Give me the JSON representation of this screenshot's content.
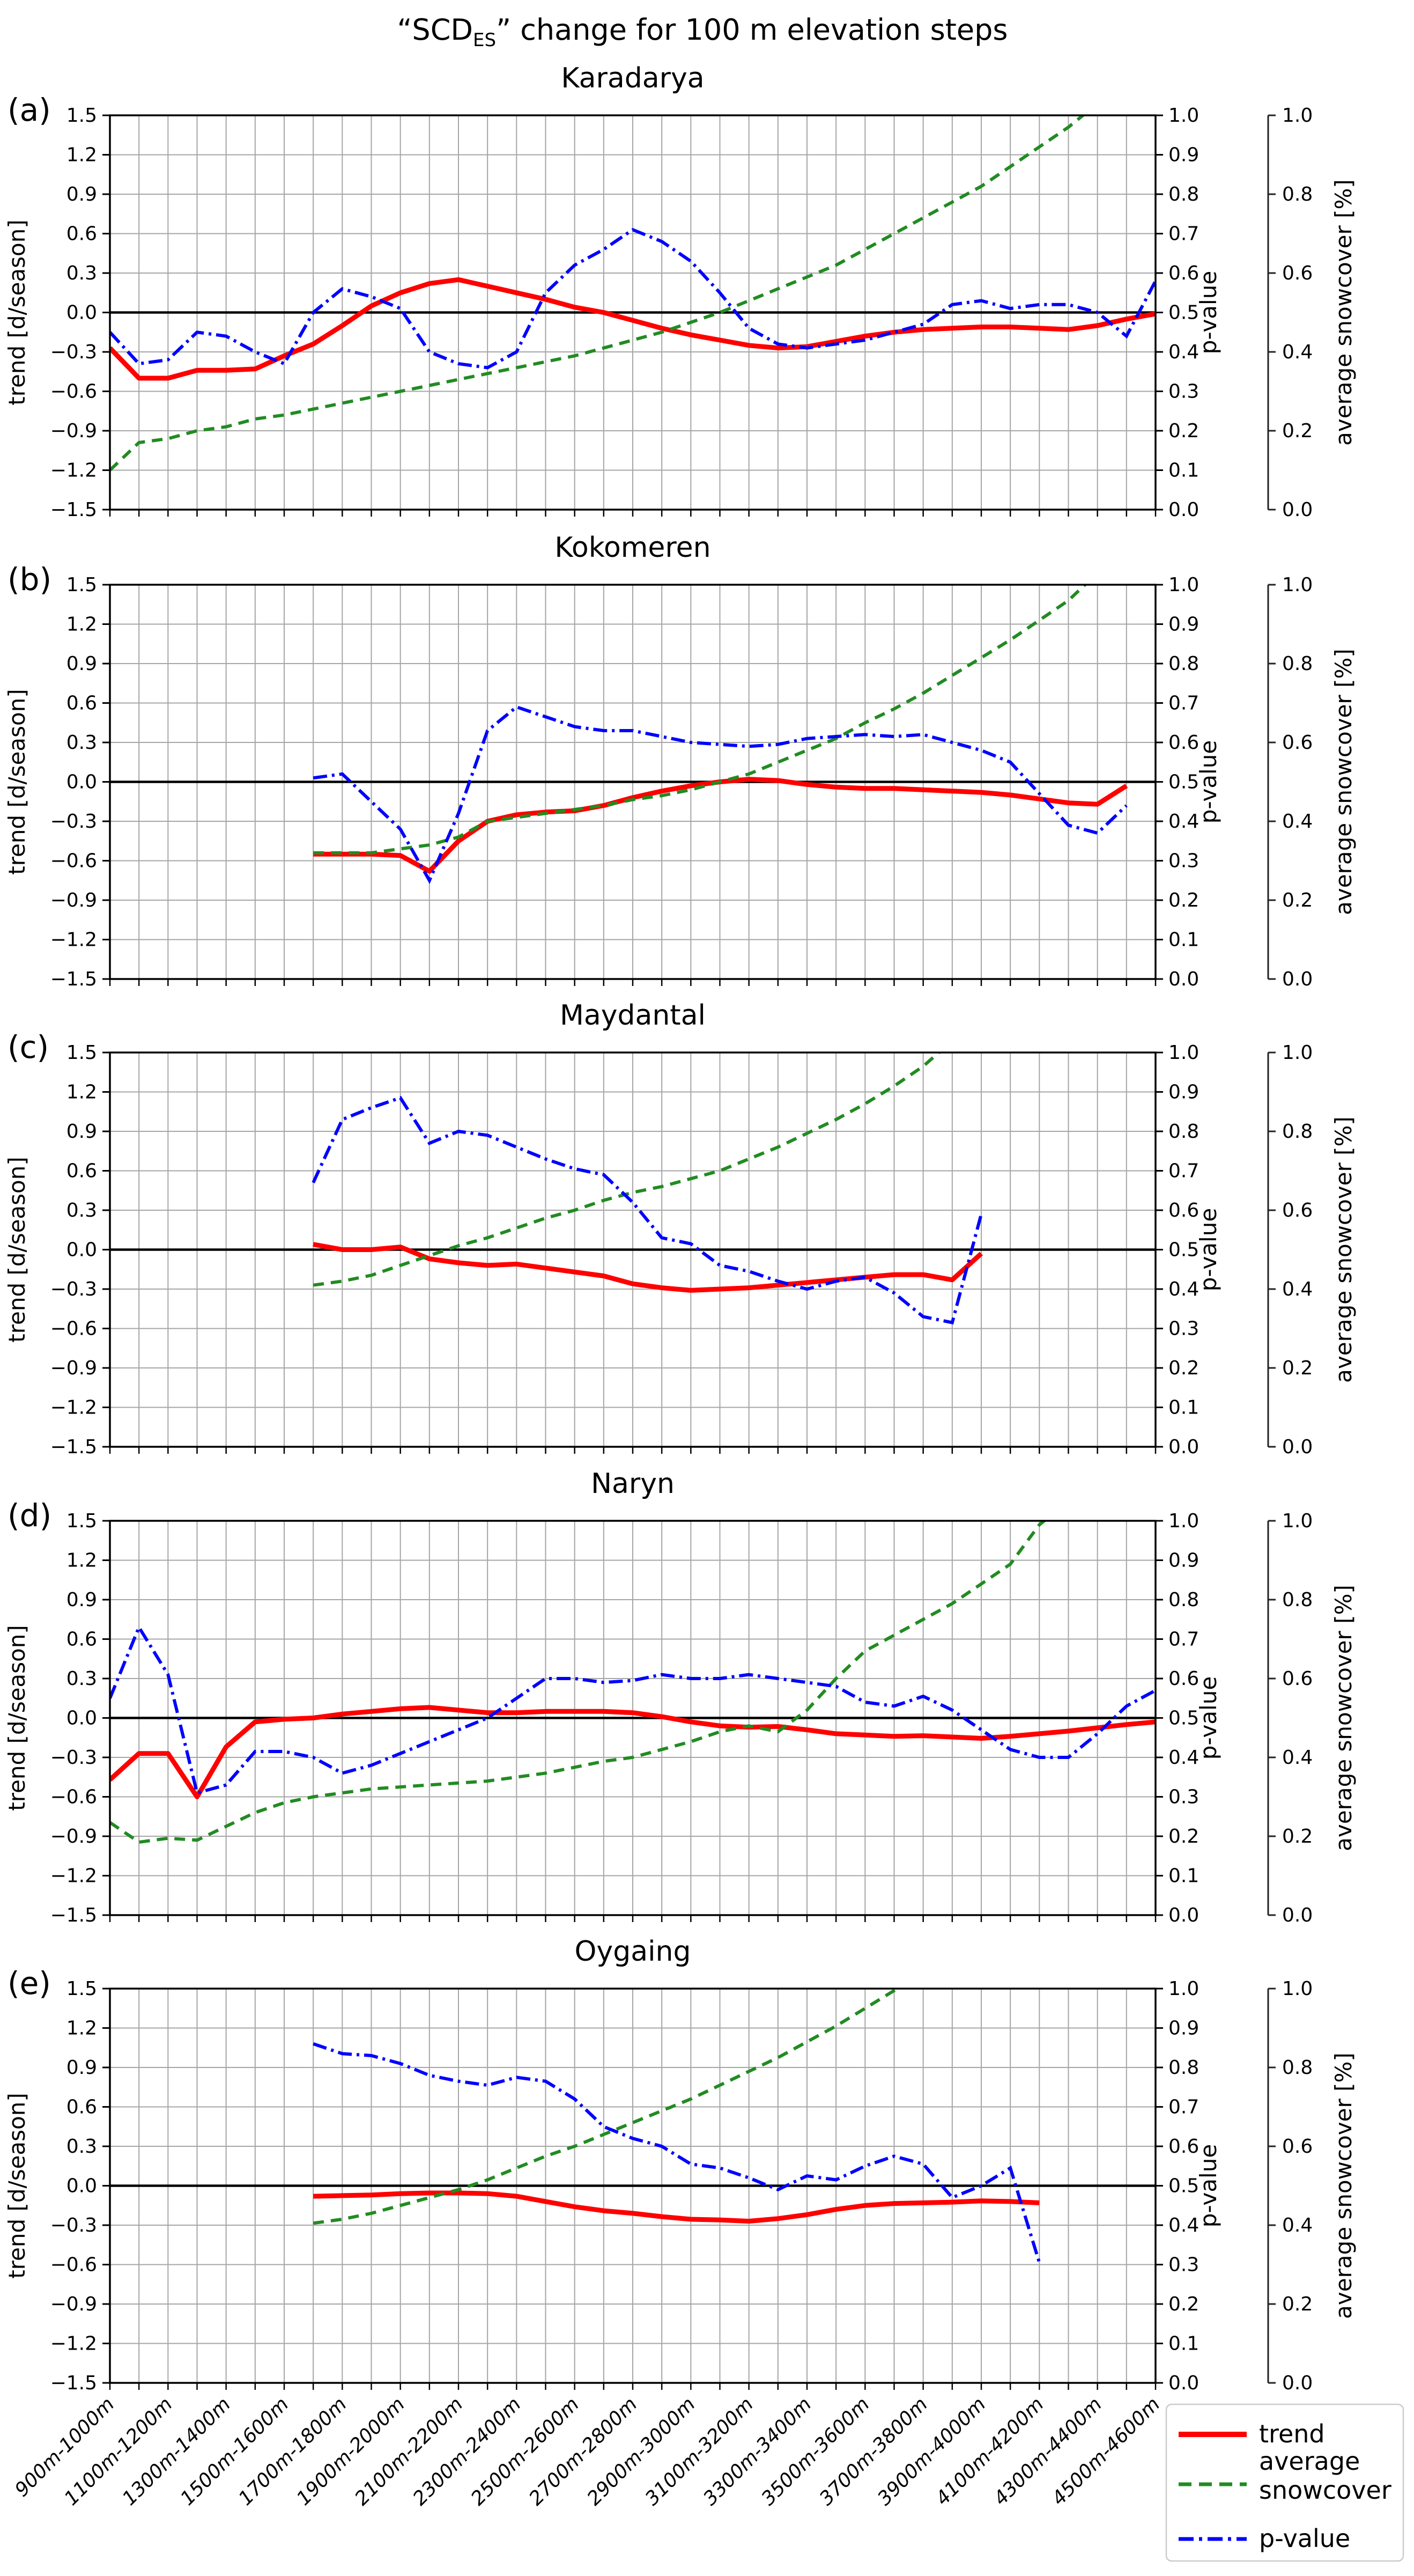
{
  "figure": {
    "title": {
      "prefix": "“SCD",
      "subscript": "ES",
      "suffix": "” change for  100 m elevation steps"
    },
    "axes": {
      "trend_label": "trend [d/season]",
      "pvalue_label": "p-value",
      "snowcover_label": "average snowcover [%]",
      "trend_ticks": [
        "1.5",
        "1.2",
        "0.9",
        "0.6",
        "0.3",
        "0.0",
        "−0.3",
        "−0.6",
        "−0.9",
        "−1.2",
        "−1.5"
      ],
      "pvalue_ticks": [
        "1.0",
        "0.9",
        "0.8",
        "0.7",
        "0.6",
        "0.5",
        "0.4",
        "0.3",
        "0.2",
        "0.1",
        "0.0"
      ],
      "snowcover_ticks": [
        "1.0",
        "0.8",
        "0.6",
        "0.4",
        "0.2",
        "0.0"
      ]
    },
    "colors": {
      "trend": "#ff0000",
      "snowcover": "#228b22",
      "pvalue": "#0000ff",
      "grid": "#a6a6a6"
    },
    "legend": {
      "items": [
        {
          "lines": [
            "trend"
          ],
          "style": "solid",
          "color": "#ff0000"
        },
        {
          "lines": [
            "average",
            "snowcover"
          ],
          "style": "dashed",
          "color": "#228b22"
        },
        {
          "lines": [
            "p-value"
          ],
          "style": "dashdot",
          "color": "#0000ff"
        }
      ]
    },
    "x_tick_labels": [
      "900m-1000m",
      "1100m-1200m",
      "1300m-1400m",
      "1500m-1600m",
      "1700m-1800m",
      "1900m-2000m",
      "2100m-2200m",
      "2300m-2400m",
      "2500m-2600m",
      "2700m-2800m",
      "2900m-3000m",
      "3100m-3200m",
      "3300m-3400m",
      "3500m-3600m",
      "3700m-3800m",
      "3900m-4000m",
      "4100m-4200m",
      "4300m-4400m",
      "4500m-4600m"
    ]
  },
  "chart_data": [
    {
      "type": "line",
      "panel_label": "(a)",
      "title": "Karadarya",
      "xlabel": "",
      "ylabel_left": "trend [d/season]",
      "ylabel_right1": "p-value",
      "ylabel_right2": "average snowcover [%]",
      "ylim_left": [
        -1.5,
        1.5
      ],
      "ylim_right": [
        0.0,
        1.0
      ],
      "n_bins": 37,
      "grid": true,
      "series": [
        {
          "name": "trend",
          "axis": "trend",
          "start": 0,
          "values": [
            -0.27,
            -0.5,
            -0.5,
            -0.44,
            -0.44,
            -0.43,
            -0.33,
            -0.24,
            -0.1,
            0.05,
            0.15,
            0.22,
            0.25,
            0.2,
            0.15,
            0.1,
            0.04,
            0.0,
            -0.06,
            -0.12,
            -0.17,
            -0.21,
            -0.25,
            -0.27,
            -0.26,
            -0.22,
            -0.18,
            -0.15,
            -0.13,
            -0.12,
            -0.11,
            -0.11,
            -0.12,
            -0.13,
            -0.1,
            -0.05,
            -0.01
          ]
        },
        {
          "name": "average snowcover",
          "axis": "pct",
          "start": 0,
          "values": [
            0.1,
            0.17,
            0.18,
            0.2,
            0.21,
            0.23,
            0.24,
            0.255,
            0.27,
            0.285,
            0.3,
            0.315,
            0.33,
            0.345,
            0.36,
            0.375,
            0.39,
            0.41,
            0.43,
            0.45,
            0.475,
            0.5,
            0.53,
            0.56,
            0.59,
            0.62,
            0.66,
            0.7,
            0.74,
            0.78,
            0.82,
            0.87,
            0.92,
            0.97,
            1.03
          ]
        },
        {
          "name": "p-value",
          "axis": "pct",
          "start": 0,
          "values": [
            0.45,
            0.37,
            0.38,
            0.45,
            0.44,
            0.4,
            0.37,
            0.5,
            0.56,
            0.54,
            0.51,
            0.4,
            0.37,
            0.36,
            0.4,
            0.55,
            0.62,
            0.66,
            0.71,
            0.68,
            0.63,
            0.55,
            0.46,
            0.42,
            0.41,
            0.42,
            0.43,
            0.45,
            0.47,
            0.52,
            0.53,
            0.51,
            0.52,
            0.52,
            0.5,
            0.44,
            0.58
          ]
        }
      ]
    },
    {
      "type": "line",
      "panel_label": "(b)",
      "title": "Kokomeren",
      "ylim_left": [
        -1.5,
        1.5
      ],
      "ylim_right": [
        0.0,
        1.0
      ],
      "n_bins": 37,
      "grid": true,
      "series": [
        {
          "name": "trend",
          "axis": "trend",
          "start": 7,
          "values": [
            -0.55,
            -0.55,
            -0.55,
            -0.56,
            -0.68,
            -0.45,
            -0.3,
            -0.25,
            -0.23,
            -0.22,
            -0.18,
            -0.12,
            -0.07,
            -0.03,
            0.0,
            0.02,
            0.01,
            -0.02,
            -0.04,
            -0.05,
            -0.05,
            -0.06,
            -0.07,
            -0.08,
            -0.1,
            -0.13,
            -0.16,
            -0.17,
            -0.03
          ]
        },
        {
          "name": "average snowcover",
          "axis": "pct",
          "start": 7,
          "values": [
            0.32,
            0.32,
            0.32,
            0.33,
            0.34,
            0.36,
            0.4,
            0.41,
            0.42,
            0.43,
            0.44,
            0.455,
            0.465,
            0.48,
            0.5,
            0.52,
            0.55,
            0.58,
            0.61,
            0.65,
            0.685,
            0.725,
            0.77,
            0.815,
            0.86,
            0.91,
            0.96,
            1.03
          ]
        },
        {
          "name": "p-value",
          "axis": "pct",
          "start": 7,
          "values": [
            0.51,
            0.52,
            0.45,
            0.38,
            0.25,
            0.42,
            0.63,
            0.69,
            0.665,
            0.64,
            0.63,
            0.63,
            0.615,
            0.6,
            0.595,
            0.59,
            0.595,
            0.61,
            0.615,
            0.62,
            0.615,
            0.62,
            0.6,
            0.58,
            0.55,
            0.47,
            0.39,
            0.37,
            0.44
          ]
        }
      ]
    },
    {
      "type": "line",
      "panel_label": "(c)",
      "title": "Maydantal",
      "ylim_left": [
        -1.5,
        1.5
      ],
      "ylim_right": [
        0.0,
        1.0
      ],
      "n_bins": 37,
      "grid": true,
      "series": [
        {
          "name": "trend",
          "axis": "trend",
          "start": 7,
          "values": [
            0.04,
            0.0,
            0.0,
            0.02,
            -0.07,
            -0.1,
            -0.12,
            -0.11,
            -0.14,
            -0.17,
            -0.2,
            -0.26,
            -0.29,
            -0.31,
            -0.3,
            -0.29,
            -0.27,
            -0.25,
            -0.23,
            -0.21,
            -0.19,
            -0.19,
            -0.23,
            -0.03
          ]
        },
        {
          "name": "average snowcover",
          "axis": "pct",
          "start": 7,
          "values": [
            0.41,
            0.42,
            0.435,
            0.46,
            0.485,
            0.51,
            0.53,
            0.555,
            0.58,
            0.6,
            0.625,
            0.645,
            0.66,
            0.68,
            0.7,
            0.73,
            0.76,
            0.795,
            0.83,
            0.87,
            0.915,
            0.965,
            1.03
          ]
        },
        {
          "name": "p-value",
          "axis": "pct",
          "start": 7,
          "values": [
            0.67,
            0.83,
            0.86,
            0.885,
            0.77,
            0.8,
            0.79,
            0.76,
            0.73,
            0.705,
            0.69,
            0.62,
            0.53,
            0.515,
            0.46,
            0.445,
            0.42,
            0.4,
            0.42,
            0.43,
            0.39,
            0.33,
            0.315,
            0.59
          ]
        }
      ]
    },
    {
      "type": "line",
      "panel_label": "(d)",
      "title": "Naryn",
      "ylim_left": [
        -1.5,
        1.5
      ],
      "ylim_right": [
        0.0,
        1.0
      ],
      "n_bins": 37,
      "grid": true,
      "series": [
        {
          "name": "trend",
          "axis": "trend",
          "start": 0,
          "values": [
            -0.47,
            -0.27,
            -0.27,
            -0.6,
            -0.22,
            -0.03,
            -0.01,
            0.0,
            0.03,
            0.05,
            0.07,
            0.08,
            0.06,
            0.04,
            0.04,
            0.05,
            0.05,
            0.05,
            0.04,
            0.01,
            -0.03,
            -0.06,
            -0.07,
            -0.065,
            -0.09,
            -0.12,
            -0.13,
            -0.14,
            -0.135,
            -0.145,
            -0.155,
            -0.14,
            -0.12,
            -0.1,
            -0.075,
            -0.05,
            -0.03
          ]
        },
        {
          "name": "average snowcover",
          "axis": "pct",
          "start": 0,
          "values": [
            0.235,
            0.185,
            0.195,
            0.19,
            0.225,
            0.26,
            0.285,
            0.3,
            0.31,
            0.32,
            0.325,
            0.33,
            0.335,
            0.34,
            0.35,
            0.36,
            0.375,
            0.39,
            0.4,
            0.42,
            0.44,
            0.465,
            0.48,
            0.465,
            0.52,
            0.6,
            0.67,
            0.71,
            0.75,
            0.79,
            0.84,
            0.89,
            0.99,
            1.05
          ]
        },
        {
          "name": "p-value",
          "axis": "pct",
          "start": 0,
          "values": [
            0.55,
            0.73,
            0.61,
            0.31,
            0.33,
            0.415,
            0.415,
            0.4,
            0.36,
            0.38,
            0.41,
            0.44,
            0.47,
            0.5,
            0.55,
            0.6,
            0.6,
            0.59,
            0.595,
            0.61,
            0.6,
            0.6,
            0.61,
            0.6,
            0.59,
            0.58,
            0.54,
            0.53,
            0.555,
            0.52,
            0.47,
            0.42,
            0.4,
            0.4,
            0.46,
            0.53,
            0.57
          ]
        }
      ]
    },
    {
      "type": "line",
      "panel_label": "(e)",
      "title": "Oygaing",
      "ylim_left": [
        -1.5,
        1.5
      ],
      "ylim_right": [
        0.0,
        1.0
      ],
      "n_bins": 37,
      "grid": true,
      "series": [
        {
          "name": "trend",
          "axis": "trend",
          "start": 7,
          "values": [
            -0.08,
            -0.075,
            -0.07,
            -0.06,
            -0.055,
            -0.055,
            -0.06,
            -0.08,
            -0.12,
            -0.16,
            -0.19,
            -0.21,
            -0.235,
            -0.255,
            -0.26,
            -0.27,
            -0.25,
            -0.22,
            -0.18,
            -0.15,
            -0.135,
            -0.13,
            -0.125,
            -0.115,
            -0.12,
            -0.13
          ]
        },
        {
          "name": "average snowcover",
          "axis": "pct",
          "start": 7,
          "values": [
            0.405,
            0.415,
            0.43,
            0.45,
            0.47,
            0.49,
            0.515,
            0.545,
            0.575,
            0.6,
            0.63,
            0.66,
            0.69,
            0.72,
            0.755,
            0.79,
            0.825,
            0.865,
            0.905,
            0.95,
            0.995,
            1.04
          ]
        },
        {
          "name": "p-value",
          "axis": "pct",
          "start": 7,
          "values": [
            0.86,
            0.835,
            0.83,
            0.81,
            0.78,
            0.765,
            0.755,
            0.775,
            0.765,
            0.72,
            0.65,
            0.62,
            0.6,
            0.555,
            0.545,
            0.52,
            0.49,
            0.525,
            0.515,
            0.55,
            0.575,
            0.555,
            0.47,
            0.5,
            0.545,
            0.305
          ]
        }
      ]
    }
  ]
}
